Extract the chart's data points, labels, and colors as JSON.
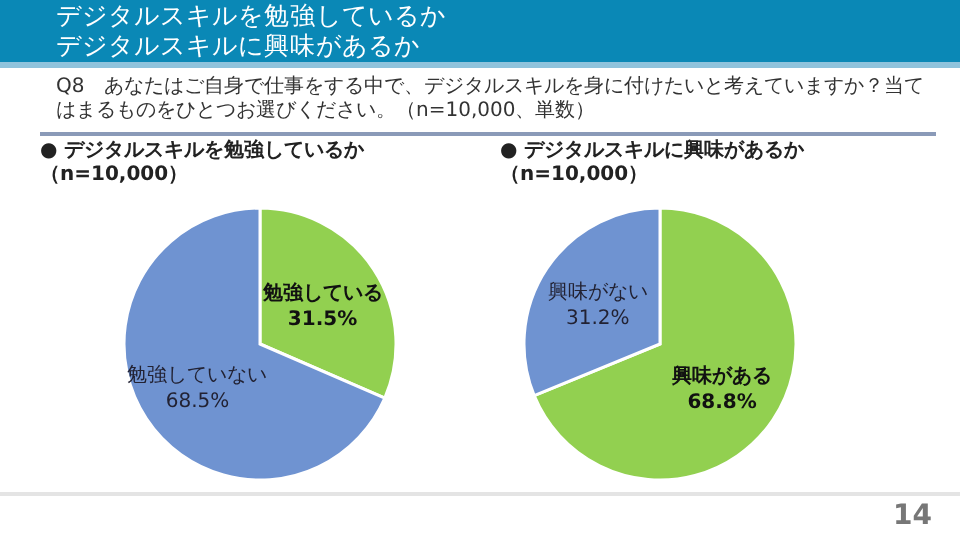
{
  "chart_data": [
    {
      "type": "other",
      "title": "デジタルスキルを勉強しているか",
      "subtitle": "デジタルスキルに興味があるか",
      "annotations": [
        "Q8　あなたはご自身で仕事をする中で、デジタルスキルを身に付けたいと考えていますか？当てはまるものをひとつお選びください。（n=10,000、単数）",
        "14"
      ]
    },
    {
      "type": "pie",
      "title": "● デジタルスキルを勉強しているか（n=10,000）",
      "categories": [
        "勉強している",
        "勉強していない"
      ],
      "values": [
        31.5,
        68.5
      ],
      "colors": [
        "#92d050",
        "#6f93d1"
      ],
      "value_labels": [
        "31.5%",
        "68.5%"
      ]
    },
    {
      "type": "pie",
      "title": "● デジタルスキルに興味があるか（n=10,000）",
      "categories": [
        "興味がある",
        "興味がない"
      ],
      "values": [
        68.8,
        31.2
      ],
      "colors": [
        "#92d050",
        "#6f93d1"
      ],
      "value_labels": [
        "68.8%",
        "31.2%"
      ]
    }
  ]
}
